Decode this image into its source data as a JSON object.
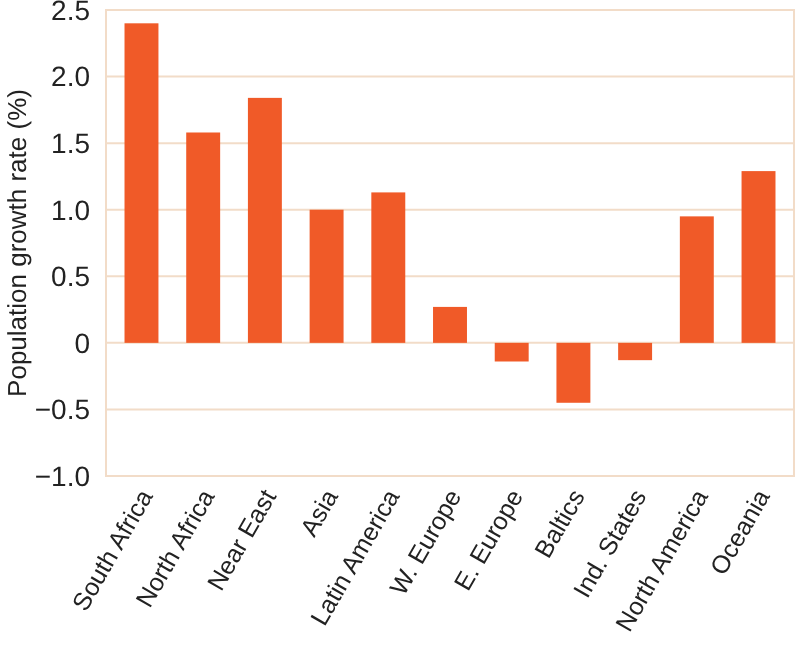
{
  "chart_data": {
    "type": "bar",
    "ylabel": "Population growth rate (%)",
    "categories": [
      "South Africa",
      "North Africa",
      "Near East",
      "Asia",
      "Latin America",
      "W. Europe",
      "E. Europe",
      "Baltics",
      "Ind. States",
      "North America",
      "Oceania"
    ],
    "values": [
      2.4,
      1.58,
      1.84,
      1.0,
      1.13,
      0.27,
      -0.14,
      -0.45,
      -0.13,
      0.95,
      1.29
    ],
    "color": "#f05a28",
    "ylim": [
      -1,
      2.5
    ],
    "yticks": [
      {
        "value": -1,
        "label": "−1.0"
      },
      {
        "value": -0.5,
        "label": "−0.5"
      },
      0,
      {
        "value": 0.5,
        "label": "0.5"
      },
      {
        "value": 1,
        "label": "1.0"
      },
      {
        "value": 1.5,
        "label": "1.5"
      },
      {
        "value": 2,
        "label": "2.0"
      },
      {
        "value": 2.5,
        "label": "2.5"
      }
    ],
    "grid": "y"
  }
}
